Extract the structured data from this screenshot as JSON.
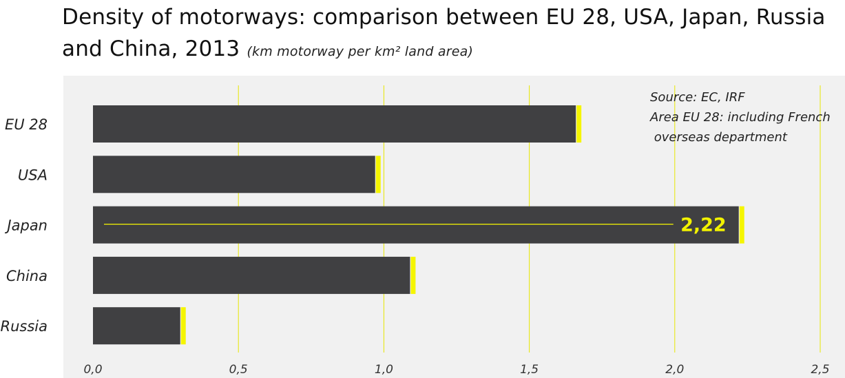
{
  "title": "Density of motorways: comparison between EU 28, USA, Japan, Russia and China, 2013",
  "subtitle": "(km motorway per km² land area)",
  "notes": [
    "Source: EC, IRF",
    "Area EU 28: including French",
    " overseas department"
  ],
  "colors": {
    "bar": "#404042",
    "accent": "#f5f500",
    "plot_bg": "#f1f1f1",
    "grid": "#e6e600"
  },
  "chart_data": {
    "type": "bar",
    "orientation": "horizontal",
    "categories": [
      "EU 28",
      "USA",
      "Japan",
      "China",
      "Russia"
    ],
    "values": [
      1.66,
      0.97,
      2.22,
      1.09,
      0.3
    ],
    "xlim": [
      0,
      2.5
    ],
    "xticks": [
      "0,0",
      "0,5",
      "1,0",
      "1,5",
      "2,0",
      "2,5"
    ],
    "xtick_values": [
      0,
      0.5,
      1.0,
      1.5,
      2.0,
      2.5
    ],
    "grid": "vertical",
    "annotations": [
      {
        "category": "Japan",
        "text": "2,22"
      }
    ]
  }
}
